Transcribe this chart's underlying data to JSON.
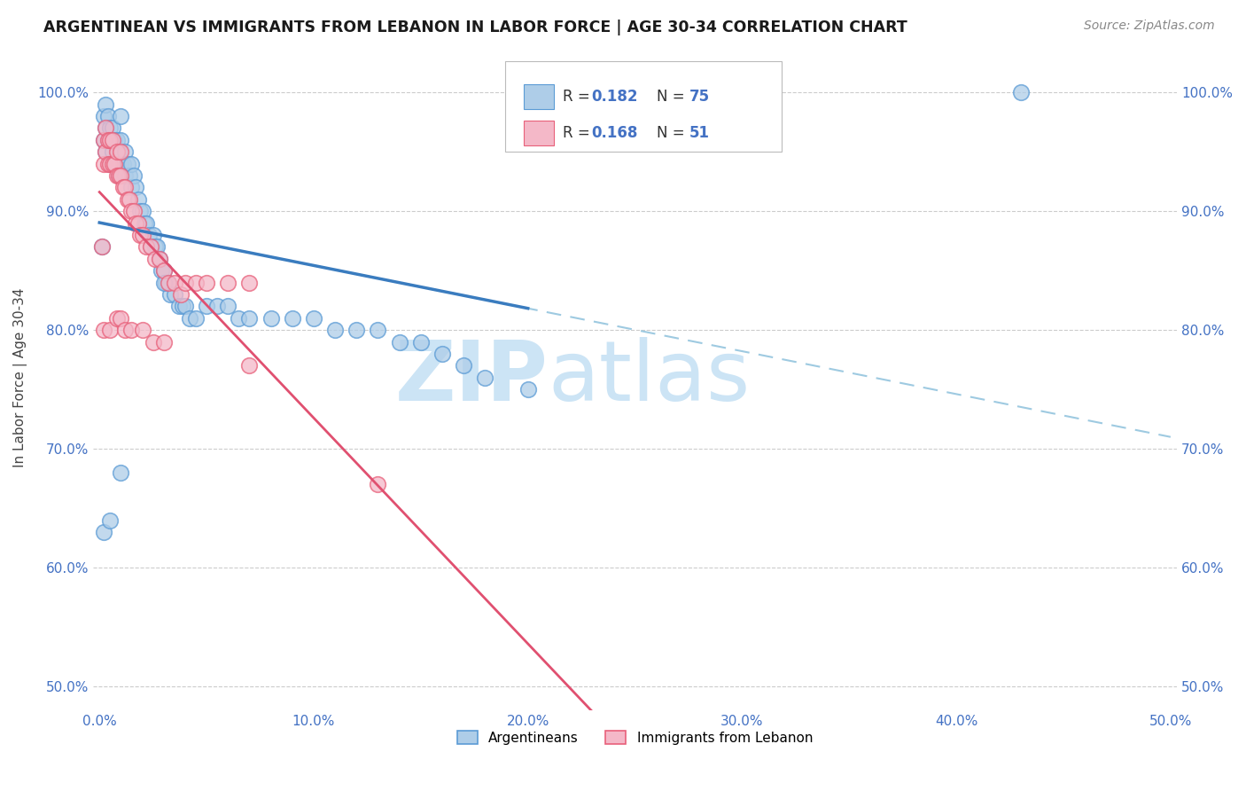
{
  "title": "ARGENTINEAN VS IMMIGRANTS FROM LEBANON IN LABOR FORCE | AGE 30-34 CORRELATION CHART",
  "source": "Source: ZipAtlas.com",
  "ylabel": "In Labor Force | Age 30-34",
  "xlim": [
    -0.003,
    0.503
  ],
  "ylim": [
    0.48,
    1.04
  ],
  "xtick_vals": [
    0.0,
    0.1,
    0.2,
    0.3,
    0.4,
    0.5
  ],
  "xticklabels": [
    "0.0%",
    "10.0%",
    "20.0%",
    "30.0%",
    "40.0%",
    "50.0%"
  ],
  "ytick_vals": [
    0.5,
    0.6,
    0.7,
    0.8,
    0.9,
    1.0
  ],
  "yticklabels": [
    "50.0%",
    "60.0%",
    "70.0%",
    "80.0%",
    "90.0%",
    "100.0%"
  ],
  "blue_fill": "#aecde8",
  "blue_edge": "#5b9bd5",
  "pink_fill": "#f4b8c8",
  "pink_edge": "#e8607a",
  "blue_line": "#3a7cbf",
  "pink_line": "#e05070",
  "dashed_line": "#9ecae1",
  "tick_color": "#4472c4",
  "watermark_color": "#cce4f5",
  "legend_r1": "0.182",
  "legend_n1": "75",
  "legend_r2": "0.168",
  "legend_n2": "51",
  "arg_x": [
    0.001,
    0.002,
    0.002,
    0.003,
    0.003,
    0.003,
    0.004,
    0.004,
    0.005,
    0.005,
    0.005,
    0.006,
    0.006,
    0.007,
    0.007,
    0.008,
    0.008,
    0.009,
    0.009,
    0.01,
    0.01,
    0.01,
    0.011,
    0.012,
    0.012,
    0.013,
    0.014,
    0.015,
    0.015,
    0.016,
    0.017,
    0.018,
    0.019,
    0.02,
    0.021,
    0.022,
    0.023,
    0.024,
    0.025,
    0.026,
    0.027,
    0.028,
    0.029,
    0.03,
    0.031,
    0.032,
    0.033,
    0.035,
    0.037,
    0.039,
    0.04,
    0.042,
    0.045,
    0.05,
    0.055,
    0.06,
    0.065,
    0.07,
    0.08,
    0.09,
    0.1,
    0.11,
    0.12,
    0.13,
    0.14,
    0.15,
    0.16,
    0.17,
    0.18,
    0.2,
    0.002,
    0.005,
    0.01,
    0.43,
    0.03
  ],
  "arg_y": [
    0.87,
    0.96,
    0.98,
    0.95,
    0.97,
    0.99,
    0.96,
    0.98,
    0.94,
    0.96,
    0.97,
    0.95,
    0.97,
    0.94,
    0.96,
    0.94,
    0.96,
    0.93,
    0.95,
    0.94,
    0.96,
    0.98,
    0.94,
    0.93,
    0.95,
    0.94,
    0.93,
    0.92,
    0.94,
    0.93,
    0.92,
    0.91,
    0.9,
    0.9,
    0.89,
    0.89,
    0.88,
    0.87,
    0.88,
    0.87,
    0.87,
    0.86,
    0.85,
    0.85,
    0.84,
    0.84,
    0.83,
    0.83,
    0.82,
    0.82,
    0.82,
    0.81,
    0.81,
    0.82,
    0.82,
    0.82,
    0.81,
    0.81,
    0.81,
    0.81,
    0.81,
    0.8,
    0.8,
    0.8,
    0.79,
    0.79,
    0.78,
    0.77,
    0.76,
    0.75,
    0.63,
    0.64,
    0.68,
    1.0,
    0.84
  ],
  "leb_x": [
    0.001,
    0.002,
    0.002,
    0.003,
    0.003,
    0.004,
    0.004,
    0.005,
    0.005,
    0.006,
    0.006,
    0.007,
    0.008,
    0.008,
    0.009,
    0.01,
    0.01,
    0.011,
    0.012,
    0.013,
    0.014,
    0.015,
    0.016,
    0.017,
    0.018,
    0.019,
    0.02,
    0.022,
    0.024,
    0.026,
    0.028,
    0.03,
    0.032,
    0.035,
    0.038,
    0.04,
    0.045,
    0.05,
    0.06,
    0.07,
    0.002,
    0.005,
    0.008,
    0.01,
    0.012,
    0.015,
    0.02,
    0.025,
    0.03,
    0.07,
    0.13
  ],
  "leb_y": [
    0.87,
    0.96,
    0.94,
    0.95,
    0.97,
    0.94,
    0.96,
    0.94,
    0.96,
    0.94,
    0.96,
    0.94,
    0.93,
    0.95,
    0.93,
    0.93,
    0.95,
    0.92,
    0.92,
    0.91,
    0.91,
    0.9,
    0.9,
    0.89,
    0.89,
    0.88,
    0.88,
    0.87,
    0.87,
    0.86,
    0.86,
    0.85,
    0.84,
    0.84,
    0.83,
    0.84,
    0.84,
    0.84,
    0.84,
    0.84,
    0.8,
    0.8,
    0.81,
    0.81,
    0.8,
    0.8,
    0.8,
    0.79,
    0.79,
    0.77,
    0.67
  ]
}
